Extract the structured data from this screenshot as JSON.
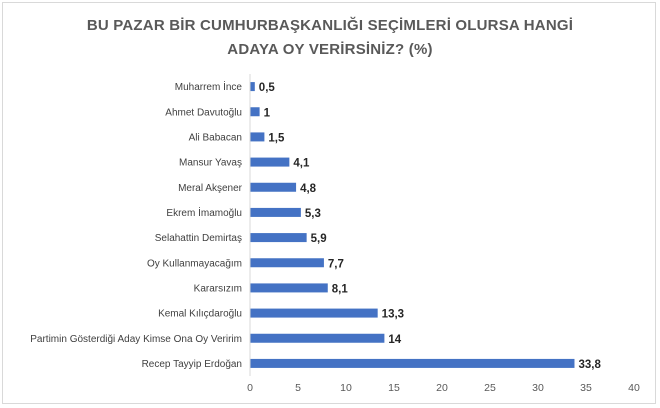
{
  "chart_data": {
    "type": "bar",
    "orientation": "horizontal",
    "title_lines": [
      "BU PAZAR BİR CUMHURBAŞKANLIĞI SEÇİMLERİ OLURSA HANGİ",
      "ADAYA OY VERİRSİNİZ? (%)"
    ],
    "categories": [
      "Muharrem İnce",
      "Ahmet Davutoğlu",
      "Ali Babacan",
      "Mansur Yavaş",
      "Meral Akşener",
      "Ekrem İmamoğlu",
      "Selahattin Demirtaş",
      "Oy Kullanmayacağım",
      "Kararsızım",
      "Kemal Kılıçdaroğlu",
      "Partimin Gösterdiği Aday Kimse Ona Oy Veririm",
      "Recep Tayyip Erdoğan"
    ],
    "values": [
      0.5,
      1,
      1.5,
      4.1,
      4.8,
      5.3,
      5.9,
      7.7,
      8.1,
      13.3,
      14,
      33.8
    ],
    "value_labels": [
      "0,5",
      "1",
      "1,5",
      "4,1",
      "4,8",
      "5,3",
      "5,9",
      "7,7",
      "8,1",
      "13,3",
      "14",
      "33,8"
    ],
    "xlim": [
      0,
      40
    ],
    "xticks": [
      0,
      5,
      10,
      15,
      20,
      25,
      30,
      35,
      40
    ],
    "grid": false,
    "bar_color": "#4472c4",
    "axis_color": "#d9d9d9",
    "title_color": "#595959"
  }
}
